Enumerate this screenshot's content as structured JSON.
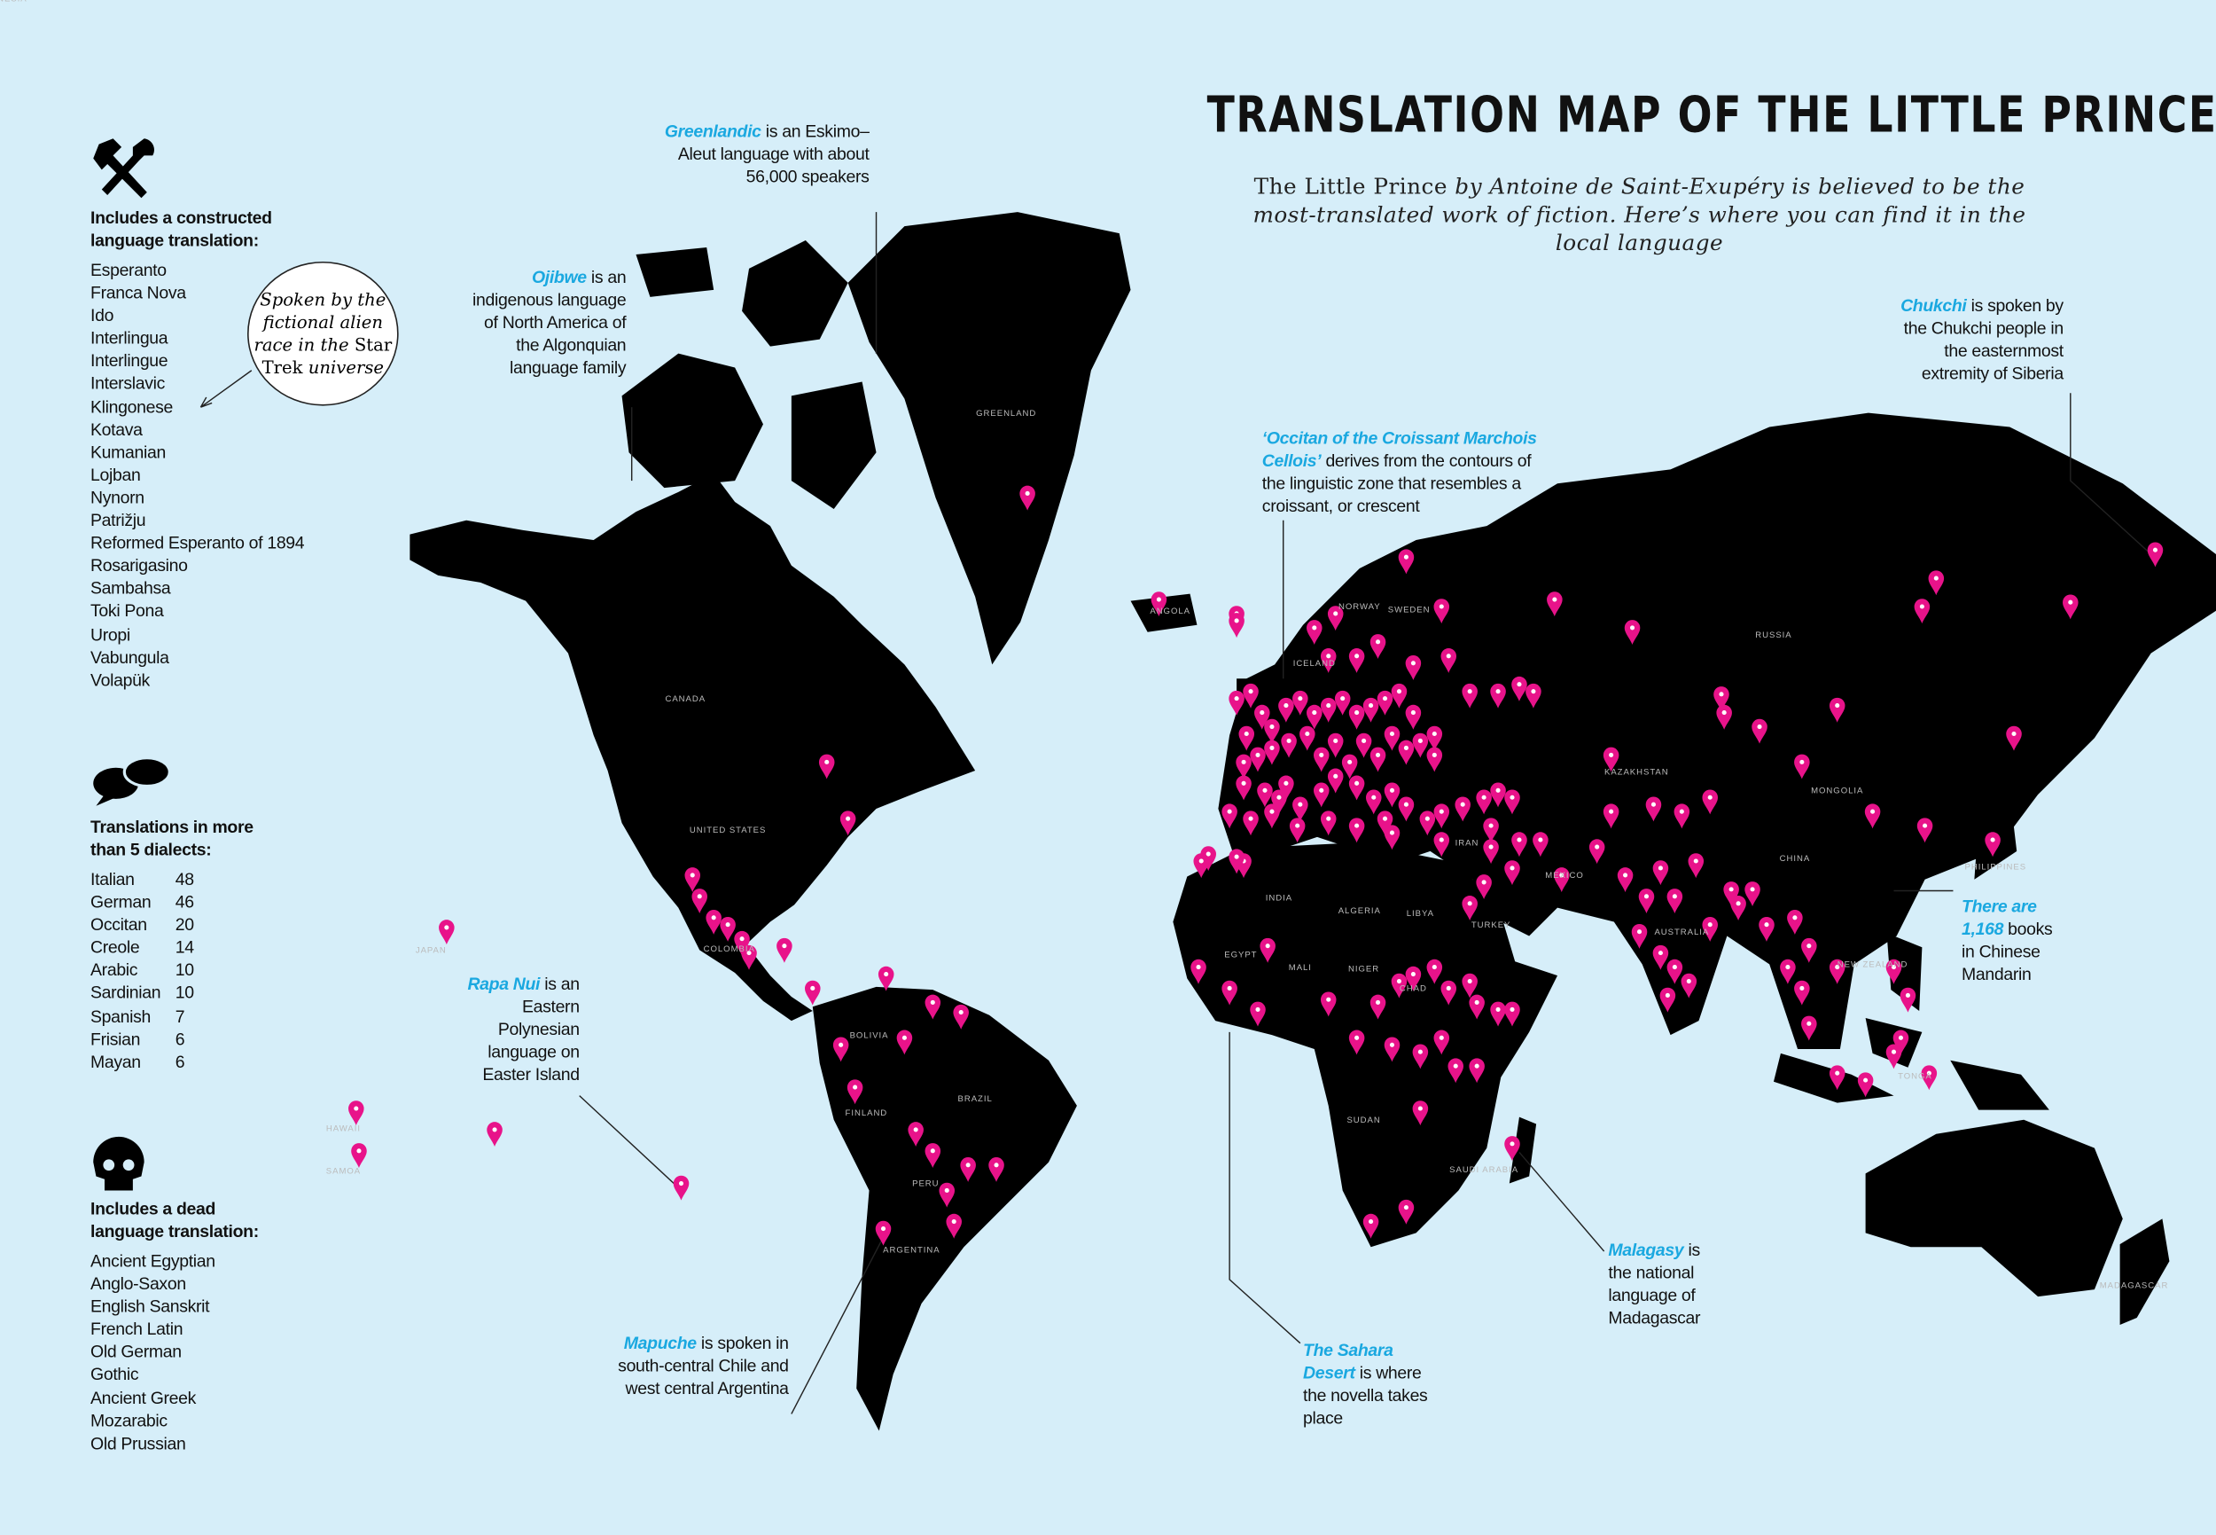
{
  "title": "TRANSLATION MAP OF THE LITTLE PRINCE",
  "subtitle": {
    "book": "The Little Prince",
    "rest": "by Antoine de Saint-Exupéry is believed to be the most-translated work of fiction. Here’s where you can find it in the local language"
  },
  "constructed": {
    "title": "Includes a constructed language translation:",
    "items": [
      "Esperanto",
      "Franca Nova",
      "Ido",
      "Interlingua",
      "Interlingue",
      "Interslavic",
      "Klingonese",
      "Kotava",
      "Kumanian",
      "Lojban",
      "Nynorn",
      "Patrižju",
      "Reformed Esperanto of 1894",
      "Rosarigasino",
      "Sambahsa",
      "Toki Pona",
      "Uropi",
      "Vabungula",
      "Volapük"
    ],
    "bubble": {
      "before": "Spoken by the fictional alien race in the",
      "show": "Star Trek",
      "after": "universe"
    }
  },
  "dialects": {
    "title": "Translations in more than 5 dialects:",
    "rows": [
      [
        "Italian",
        48
      ],
      [
        "German",
        46
      ],
      [
        "Occitan",
        20
      ],
      [
        "Creole",
        14
      ],
      [
        "Arabic",
        10
      ],
      [
        "Sardinian",
        10
      ],
      [
        "Spanish",
        7
      ],
      [
        "Frisian",
        6
      ],
      [
        "Mayan",
        6
      ]
    ]
  },
  "dead": {
    "title": "Includes a dead language translation:",
    "items": [
      "Ancient Egyptian",
      "Anglo-Saxon",
      "English Sanskrit",
      "French Latin",
      "Old German",
      "Gothic",
      "Ancient Greek",
      "Mozarabic",
      "Old Prussian"
    ]
  },
  "annotations": [
    {
      "lead": "Greenlandic",
      "text": "is an Eskimo–Aleut language with about 56,000 speakers"
    },
    {
      "lead": "Ojibwe",
      "text": "is an indigenous language of North America of the Algonquian language family"
    },
    {
      "lead": "‘Occitan of the Croissant Marchois Cellois’",
      "text": "derives from the contours of the linguistic zone that resembles a croissant, or crescent"
    },
    {
      "lead": "Chukchi",
      "text": "is spoken by the Chukchi people in the easternmost extremity of Siberia"
    },
    {
      "lead": "There are 1,168",
      "text": "books in Chinese Mandarin"
    },
    {
      "lead": "Rapa Nui",
      "text": "is an Eastern Polynesian language on Easter Island"
    },
    {
      "lead": "Mapuche",
      "text": "is spoken in south-central Chile and west central Argentina"
    },
    {
      "lead": "The Sahara Desert",
      "text": "is where the novella takes place"
    },
    {
      "lead": "Malagasy",
      "text": "is the national language of Madagascar"
    }
  ],
  "map_labels": [
    "GREENLAND",
    "CANADA",
    "UNITED STATES",
    "BRAZIL",
    "ARGENTINA",
    "RUSSIA",
    "CHINA",
    "AUSTRALIA",
    "KAZAKHSTAN",
    "MONGOLIA",
    "INDIA",
    "ALGERIA",
    "LIBYA",
    "EGYPT",
    "MALI",
    "NIGER",
    "CHAD",
    "SUDAN",
    "ANGOLA",
    "ICELAND",
    "NORWAY",
    "SWEDEN",
    "FINLAND",
    "PERU",
    "BOLIVIA",
    "COLOMBIA",
    "MEXICO",
    "IRAN",
    "TURKEY",
    "SAUDI ARABIA",
    "MADAGASCAR",
    "NEW ZEALAND",
    "PHILIPPINES",
    "JAPAN",
    "HAWAII",
    "SAMOA",
    "TONGA",
    "INDONESIA"
  ]
}
